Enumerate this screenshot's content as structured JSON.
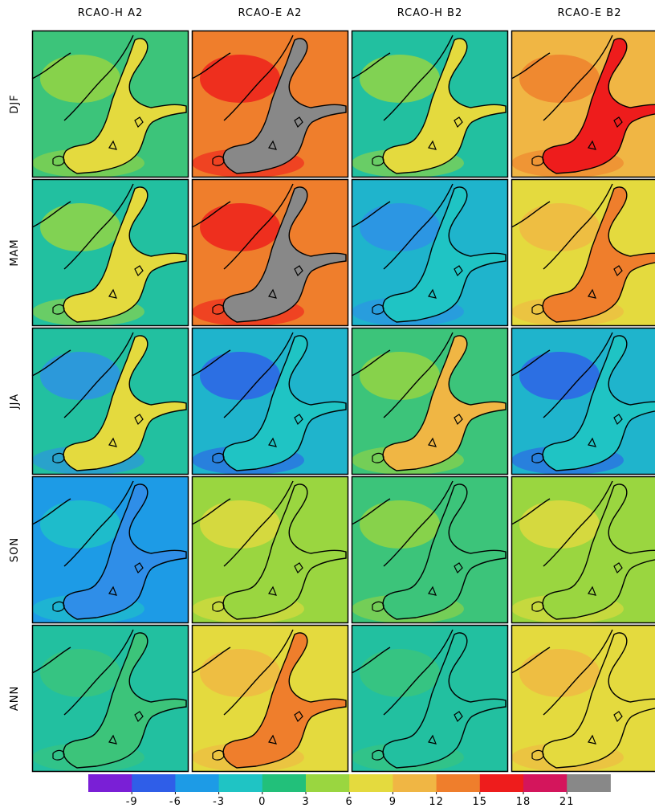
{
  "columns": [
    "RCAO-H A2",
    "RCAO-E A2",
    "RCAO-H B2",
    "RCAO-E B2"
  ],
  "rows": [
    "DJF",
    "MAM",
    "JJA",
    "SON",
    "ANN"
  ],
  "colorbar": {
    "ticks": [
      -9,
      -6,
      -3,
      0,
      3,
      6,
      9,
      12,
      15,
      18,
      21
    ],
    "colors": [
      "#7a1fd6",
      "#2f5ee8",
      "#1d9be6",
      "#1fc4c4",
      "#22c07a",
      "#9ad640",
      "#e4da3e",
      "#f0b644",
      "#ef7e2c",
      "#ee1c1c",
      "#d4155c",
      "#888888"
    ]
  }
}
